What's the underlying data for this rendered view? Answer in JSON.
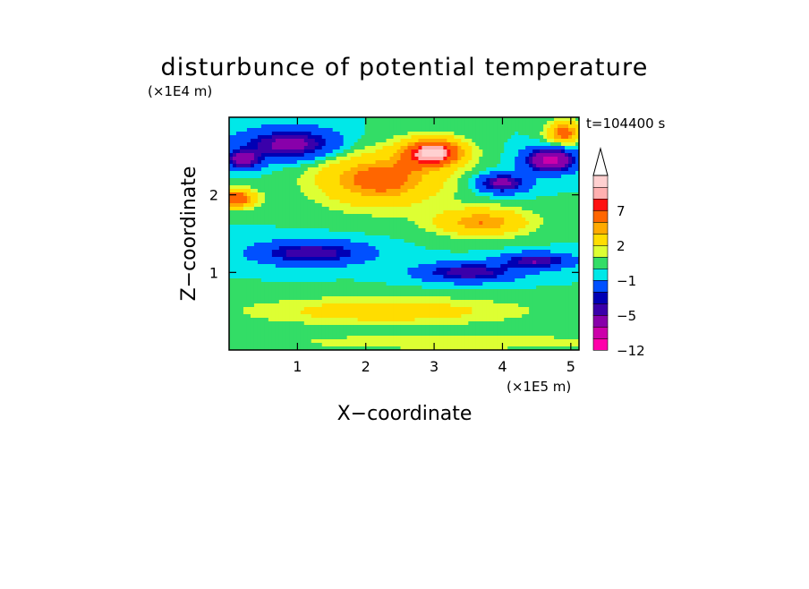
{
  "chart_data": {
    "type": "heatmap",
    "title": "disturbunce of potential temperature",
    "xlabel": "X−coordinate",
    "ylabel": "Z−coordinate",
    "x_unit": "(×1E5 m)",
    "y_unit": "(×1E4 m)",
    "time_label": "t=104400 s",
    "xlim": [
      0,
      5.12
    ],
    "ylim": [
      0,
      3.0
    ],
    "x_ticks": [
      {
        "value": 1,
        "label": "1"
      },
      {
        "value": 2,
        "label": "2"
      },
      {
        "value": 3,
        "label": "3"
      },
      {
        "value": 4,
        "label": "4"
      },
      {
        "value": 5,
        "label": "5"
      }
    ],
    "y_ticks": [
      {
        "value": 1,
        "label": "1"
      },
      {
        "value": 2,
        "label": "2"
      }
    ],
    "colorbar": {
      "levels": [
        -12,
        -10,
        -8,
        -5,
        -4,
        -3,
        -1,
        0,
        1,
        2,
        4,
        5,
        7,
        8,
        9
      ],
      "colors": [
        "#ff00aa",
        "#cc00aa",
        "#8800aa",
        "#3a00aa",
        "#0000b4",
        "#0050ff",
        "#00e8e8",
        "#33dd66",
        "#ddff33",
        "#ffdd00",
        "#ffaa00",
        "#ff6600",
        "#ff1111",
        "#ffb0b0",
        "#ffd0d0"
      ],
      "labels": [
        {
          "value": 7,
          "label": "7"
        },
        {
          "value": 2,
          "label": "2"
        },
        {
          "value": -1,
          "label": "−1"
        },
        {
          "value": -5,
          "label": "−5"
        },
        {
          "value": -12,
          "label": "−12"
        }
      ],
      "extend": "max"
    },
    "field_features": [
      {
        "x": 3.0,
        "z": 2.55,
        "amp": 9,
        "sx": 0.45,
        "sz": 0.18
      },
      {
        "x": 2.2,
        "z": 2.2,
        "amp": 6,
        "sx": 0.9,
        "sz": 0.35
      },
      {
        "x": 3.7,
        "z": 1.65,
        "amp": 5,
        "sx": 0.7,
        "sz": 0.18
      },
      {
        "x": 0.1,
        "z": 1.95,
        "amp": 7,
        "sx": 0.3,
        "sz": 0.12
      },
      {
        "x": 0.9,
        "z": 2.65,
        "amp": -6,
        "sx": 0.7,
        "sz": 0.2
      },
      {
        "x": 4.7,
        "z": 2.45,
        "amp": -9,
        "sx": 0.35,
        "sz": 0.15
      },
      {
        "x": 4.0,
        "z": 2.15,
        "amp": -6,
        "sx": 0.35,
        "sz": 0.12
      },
      {
        "x": 0.2,
        "z": 2.45,
        "amp": -6,
        "sx": 0.25,
        "sz": 0.12
      },
      {
        "x": 3.5,
        "z": 1.0,
        "amp": -5,
        "sx": 0.7,
        "sz": 0.12
      },
      {
        "x": 1.2,
        "z": 1.25,
        "amp": -5,
        "sx": 0.8,
        "sz": 0.15
      },
      {
        "x": 4.5,
        "z": 1.15,
        "amp": -5,
        "sx": 0.5,
        "sz": 0.1
      },
      {
        "x": 2.3,
        "z": 0.5,
        "amp": 3,
        "sx": 2.0,
        "sz": 0.18
      },
      {
        "x": 3.3,
        "z": 0.1,
        "amp": 2,
        "sx": 2.5,
        "sz": 0.1
      },
      {
        "x": 4.9,
        "z": 2.8,
        "amp": 6,
        "sx": 0.25,
        "sz": 0.15
      }
    ]
  }
}
